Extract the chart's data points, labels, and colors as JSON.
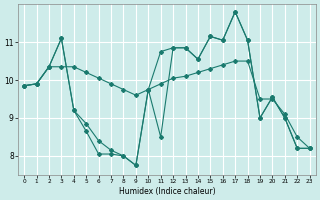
{
  "xlabel": "Humidex (Indice chaleur)",
  "bg_color": "#ceecea",
  "grid_color": "#ffffff",
  "line_color": "#1a7a6e",
  "line1_y": [
    9.85,
    9.9,
    10.35,
    10.35,
    10.35,
    10.2,
    10.05,
    9.9,
    9.75,
    9.6,
    9.75,
    9.9,
    10.05,
    10.1,
    10.2,
    10.3,
    10.4,
    10.5,
    10.5,
    9.5,
    9.5,
    9.1,
    8.5,
    8.2
  ],
  "line2_y": [
    9.85,
    9.9,
    10.35,
    11.1,
    9.2,
    8.65,
    8.05,
    8.05,
    8.0,
    7.75,
    9.75,
    10.75,
    10.85,
    10.85,
    10.55,
    11.15,
    11.05,
    11.8,
    11.05,
    9.0,
    9.55,
    9.0,
    8.2,
    8.2
  ],
  "line3_y": [
    9.85,
    9.9,
    10.35,
    11.1,
    9.2,
    8.85,
    8.4,
    8.15,
    8.0,
    7.75,
    9.75,
    8.5,
    10.85,
    10.85,
    10.55,
    11.15,
    11.05,
    11.8,
    11.05,
    9.0,
    9.55,
    9.0,
    8.2,
    8.2
  ],
  "ylim": [
    7.5,
    12.0
  ],
  "xlim": [
    -0.5,
    23.5
  ],
  "yticks": [
    8,
    9,
    10,
    11
  ],
  "xticks": [
    0,
    1,
    2,
    3,
    4,
    5,
    6,
    7,
    8,
    9,
    10,
    11,
    12,
    13,
    14,
    15,
    16,
    17,
    18,
    19,
    20,
    21,
    22,
    23
  ],
  "markersize": 2.0
}
